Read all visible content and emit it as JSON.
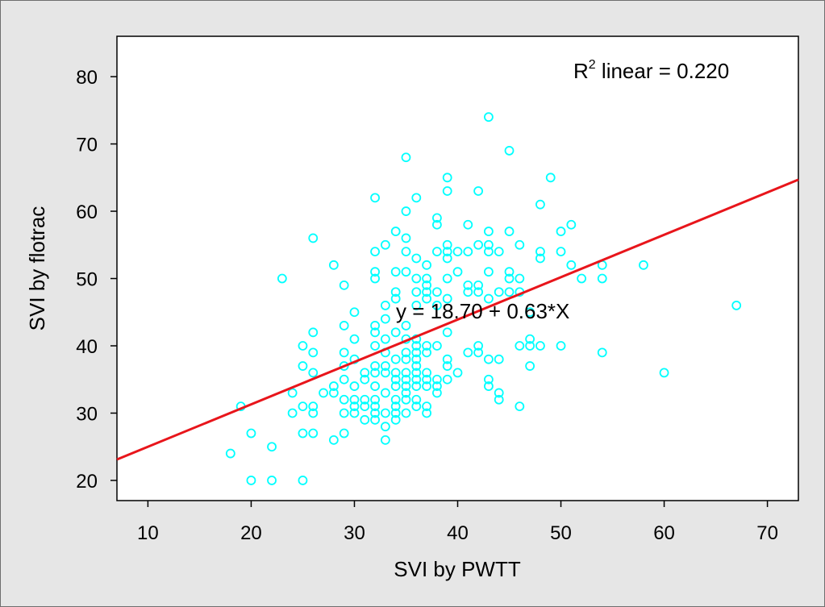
{
  "chart_data": {
    "type": "scatter",
    "xlabel": "SVI by PWTT",
    "ylabel": "SVI by flotrac",
    "xlim": [
      7,
      73
    ],
    "ylim": [
      17,
      86
    ],
    "x_ticks": [
      10,
      20,
      30,
      40,
      50,
      60,
      70
    ],
    "y_ticks": [
      20,
      30,
      40,
      50,
      60,
      70,
      80
    ],
    "grid": false,
    "r2_label": {
      "prefix": "R",
      "superscript": "2",
      "suffix": " linear = 0.220"
    },
    "fit_equation": "y = 18.70 + 0.63*X",
    "fit_line": {
      "intercept": 18.7,
      "slope": 0.63,
      "color": "#e8151b"
    },
    "marker_color": "#00ffff",
    "background": "#ffffff",
    "outer_background": "#e6e6e6",
    "series": [
      {
        "points": [
          [
            18,
            24
          ],
          [
            19,
            31
          ],
          [
            20,
            20
          ],
          [
            20,
            27
          ],
          [
            22,
            20
          ],
          [
            22,
            25
          ],
          [
            23,
            50
          ],
          [
            24,
            33
          ],
          [
            24,
            30
          ],
          [
            25,
            40
          ],
          [
            25,
            37
          ],
          [
            25,
            31
          ],
          [
            25,
            27
          ],
          [
            25,
            20
          ],
          [
            26,
            56
          ],
          [
            26,
            42
          ],
          [
            26,
            39
          ],
          [
            26,
            36
          ],
          [
            26,
            31
          ],
          [
            26,
            30
          ],
          [
            26,
            27
          ],
          [
            27,
            33
          ],
          [
            28,
            52
          ],
          [
            28,
            34
          ],
          [
            28,
            33
          ],
          [
            28,
            26
          ],
          [
            29,
            49
          ],
          [
            29,
            43
          ],
          [
            29,
            39
          ],
          [
            29,
            37
          ],
          [
            29,
            35
          ],
          [
            29,
            32
          ],
          [
            29,
            30
          ],
          [
            29,
            27
          ],
          [
            30,
            45
          ],
          [
            30,
            41
          ],
          [
            30,
            38
          ],
          [
            30,
            34
          ],
          [
            30,
            32
          ],
          [
            30,
            31
          ],
          [
            30,
            30
          ],
          [
            31,
            36
          ],
          [
            31,
            35
          ],
          [
            31,
            32
          ],
          [
            31,
            31
          ],
          [
            31,
            29
          ],
          [
            32,
            62
          ],
          [
            32,
            54
          ],
          [
            32,
            51
          ],
          [
            32,
            50
          ],
          [
            32,
            43
          ],
          [
            32,
            42
          ],
          [
            32,
            40
          ],
          [
            32,
            37
          ],
          [
            32,
            36
          ],
          [
            32,
            34
          ],
          [
            32,
            32
          ],
          [
            32,
            31
          ],
          [
            32,
            30
          ],
          [
            32,
            29
          ],
          [
            33,
            55
          ],
          [
            33,
            46
          ],
          [
            33,
            44
          ],
          [
            33,
            41
          ],
          [
            33,
            39
          ],
          [
            33,
            37
          ],
          [
            33,
            36
          ],
          [
            33,
            33
          ],
          [
            33,
            30
          ],
          [
            33,
            28
          ],
          [
            33,
            26
          ],
          [
            34,
            57
          ],
          [
            34,
            51
          ],
          [
            34,
            48
          ],
          [
            34,
            47
          ],
          [
            34,
            42
          ],
          [
            34,
            38
          ],
          [
            34,
            36
          ],
          [
            34,
            35
          ],
          [
            34,
            34
          ],
          [
            34,
            32
          ],
          [
            34,
            31
          ],
          [
            34,
            30
          ],
          [
            34,
            29
          ],
          [
            35,
            68
          ],
          [
            35,
            60
          ],
          [
            35,
            56
          ],
          [
            35,
            54
          ],
          [
            35,
            51
          ],
          [
            35,
            43
          ],
          [
            35,
            41
          ],
          [
            35,
            39
          ],
          [
            35,
            38
          ],
          [
            35,
            36
          ],
          [
            35,
            35
          ],
          [
            35,
            34
          ],
          [
            35,
            33
          ],
          [
            35,
            32
          ],
          [
            35,
            30
          ],
          [
            36,
            62
          ],
          [
            36,
            53
          ],
          [
            36,
            50
          ],
          [
            36,
            48
          ],
          [
            36,
            46
          ],
          [
            36,
            41
          ],
          [
            36,
            40
          ],
          [
            36,
            39
          ],
          [
            36,
            38
          ],
          [
            36,
            37
          ],
          [
            36,
            36
          ],
          [
            36,
            35
          ],
          [
            36,
            34
          ],
          [
            36,
            32
          ],
          [
            36,
            31
          ],
          [
            37,
            52
          ],
          [
            37,
            50
          ],
          [
            37,
            49
          ],
          [
            37,
            48
          ],
          [
            37,
            47
          ],
          [
            37,
            40
          ],
          [
            37,
            39
          ],
          [
            37,
            36
          ],
          [
            37,
            35
          ],
          [
            37,
            34
          ],
          [
            37,
            31
          ],
          [
            37,
            30
          ],
          [
            38,
            59
          ],
          [
            38,
            58
          ],
          [
            38,
            54
          ],
          [
            38,
            48
          ],
          [
            38,
            46
          ],
          [
            38,
            40
          ],
          [
            38,
            35
          ],
          [
            38,
            34
          ],
          [
            38,
            33
          ],
          [
            39,
            65
          ],
          [
            39,
            63
          ],
          [
            39,
            55
          ],
          [
            39,
            54
          ],
          [
            39,
            53
          ],
          [
            39,
            50
          ],
          [
            39,
            47
          ],
          [
            39,
            42
          ],
          [
            39,
            38
          ],
          [
            39,
            37
          ],
          [
            39,
            35
          ],
          [
            40,
            54
          ],
          [
            40,
            51
          ],
          [
            40,
            36
          ],
          [
            41,
            58
          ],
          [
            41,
            54
          ],
          [
            41,
            49
          ],
          [
            41,
            48
          ],
          [
            41,
            39
          ],
          [
            42,
            63
          ],
          [
            42,
            55
          ],
          [
            42,
            49
          ],
          [
            42,
            48
          ],
          [
            42,
            40
          ],
          [
            42,
            39
          ],
          [
            43,
            74
          ],
          [
            43,
            57
          ],
          [
            43,
            55
          ],
          [
            43,
            54
          ],
          [
            43,
            51
          ],
          [
            43,
            47
          ],
          [
            43,
            38
          ],
          [
            43,
            35
          ],
          [
            43,
            34
          ],
          [
            44,
            54
          ],
          [
            44,
            48
          ],
          [
            44,
            38
          ],
          [
            44,
            33
          ],
          [
            44,
            32
          ],
          [
            45,
            69
          ],
          [
            45,
            57
          ],
          [
            45,
            51
          ],
          [
            45,
            50
          ],
          [
            45,
            48
          ],
          [
            46,
            55
          ],
          [
            46,
            50
          ],
          [
            46,
            48
          ],
          [
            46,
            40
          ],
          [
            46,
            31
          ],
          [
            47,
            45
          ],
          [
            47,
            41
          ],
          [
            47,
            40
          ],
          [
            47,
            37
          ],
          [
            48,
            61
          ],
          [
            48,
            54
          ],
          [
            48,
            53
          ],
          [
            48,
            40
          ],
          [
            49,
            65
          ],
          [
            50,
            57
          ],
          [
            50,
            54
          ],
          [
            50,
            40
          ],
          [
            51,
            58
          ],
          [
            51,
            52
          ],
          [
            52,
            50
          ],
          [
            54,
            52
          ],
          [
            54,
            50
          ],
          [
            54,
            39
          ],
          [
            58,
            52
          ],
          [
            60,
            36
          ],
          [
            67,
            46
          ]
        ]
      }
    ]
  }
}
